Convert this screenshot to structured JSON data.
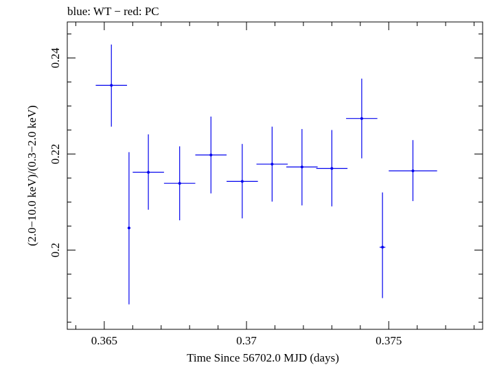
{
  "chart_data": {
    "type": "scatter",
    "title": "blue: WT − red: PC",
    "xlabel": "Time Since 56702.0 MJD (days)",
    "ylabel": "(2.0−10.0 keV)/(0.3−2.0 keV)",
    "xlim": [
      0.3637,
      0.3783
    ],
    "ylim": [
      0.1835,
      0.2475
    ],
    "x_major_ticks": [
      0.365,
      0.37,
      0.375
    ],
    "x_tick_labels": [
      "0.365",
      "0.37",
      "0.375"
    ],
    "x_minor_step": 0.001,
    "y_major_ticks": [
      0.2,
      0.22,
      0.24
    ],
    "y_tick_labels": [
      "0.2",
      "0.22",
      "0.24"
    ],
    "y_minor_step": 0.005,
    "grid": false,
    "series": [
      {
        "color": "#0000ee",
        "points": [
          {
            "x": 0.36525,
            "xerr": 0.00055,
            "y": 0.2343,
            "yerr_low": 0.0086,
            "yerr_high": 0.0085
          },
          {
            "x": 0.36587,
            "xerr": 5e-05,
            "y": 0.2046,
            "yerr_low": 0.0159,
            "yerr_high": 0.0158
          },
          {
            "x": 0.36655,
            "xerr": 0.00055,
            "y": 0.2162,
            "yerr_low": 0.0078,
            "yerr_high": 0.0079
          },
          {
            "x": 0.36765,
            "xerr": 0.00055,
            "y": 0.2139,
            "yerr_low": 0.0077,
            "yerr_high": 0.0077
          },
          {
            "x": 0.36875,
            "xerr": 0.00055,
            "y": 0.2198,
            "yerr_low": 0.008,
            "yerr_high": 0.008
          },
          {
            "x": 0.36985,
            "xerr": 0.00055,
            "y": 0.2143,
            "yerr_low": 0.0077,
            "yerr_high": 0.0078
          },
          {
            "x": 0.3709,
            "xerr": 0.00055,
            "y": 0.2179,
            "yerr_low": 0.0078,
            "yerr_high": 0.0078
          },
          {
            "x": 0.37195,
            "xerr": 0.00055,
            "y": 0.2173,
            "yerr_low": 0.008,
            "yerr_high": 0.0079
          },
          {
            "x": 0.373,
            "xerr": 0.00055,
            "y": 0.217,
            "yerr_low": 0.0079,
            "yerr_high": 0.008
          },
          {
            "x": 0.37405,
            "xerr": 0.00055,
            "y": 0.2274,
            "yerr_low": 0.0083,
            "yerr_high": 0.0083
          },
          {
            "x": 0.37478,
            "xerr": 0.0001,
            "y": 0.2006,
            "yerr_low": 0.0106,
            "yerr_high": 0.0114
          },
          {
            "x": 0.37585,
            "xerr": 0.00085,
            "y": 0.2165,
            "yerr_low": 0.0063,
            "yerr_high": 0.0064
          }
        ]
      }
    ]
  }
}
